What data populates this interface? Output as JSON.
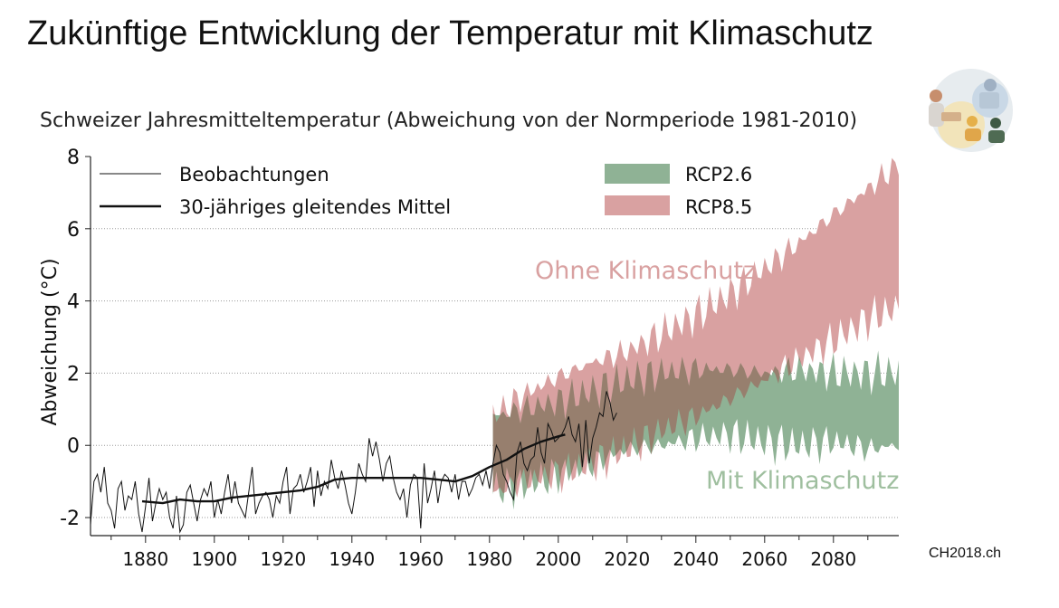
{
  "slide": {
    "title": "Zukünftige Entwicklung der Temperatur mit Klimaschutz",
    "source": "CH2018.ch"
  },
  "colors": {
    "rcp26": "#8fb295",
    "rcp85": "#d9a1a1",
    "overlap": "#9a6e61",
    "label_ohne": "#d9a1a1",
    "label_mit": "#9fbf9f",
    "observations": "#111111"
  },
  "logo": {
    "icon": "ch2018-people-collage-icon"
  },
  "chart_data": {
    "type": "line",
    "title": "Schweizer Jahresmitteltemperatur (Abweichung von der Normperiode 1981-2010)",
    "ylabel": "Abweichung (°C)",
    "xlabel": "",
    "xlim": [
      1864,
      2099
    ],
    "ylim": [
      -2.5,
      8
    ],
    "xticks": [
      1880,
      1900,
      1920,
      1940,
      1960,
      1980,
      2000,
      2020,
      2040,
      2060,
      2080
    ],
    "yticks": [
      -2,
      0,
      2,
      4,
      6,
      8
    ],
    "grid": "horizontal dotted",
    "legend_position": "top",
    "legend": [
      {
        "label": "Beobachtungen",
        "kind": "thin-line"
      },
      {
        "label": "30-jähriges gleitendes Mittel",
        "kind": "thick-line"
      },
      {
        "label": "RCP2.6",
        "kind": "band"
      },
      {
        "label": "RCP8.5",
        "kind": "band"
      }
    ],
    "annotations": [
      {
        "text": "Ohne Klimaschutz",
        "x": 2035,
        "y": 4.8,
        "scenario": "RCP8.5"
      },
      {
        "text": "Mit Klimaschutz",
        "x": 2070,
        "y": -1.0,
        "scenario": "RCP2.6"
      }
    ],
    "series": [
      {
        "name": "Beobachtungen",
        "x": [
          1864,
          1865,
          1866,
          1867,
          1868,
          1869,
          1870,
          1871,
          1872,
          1873,
          1874,
          1875,
          1876,
          1877,
          1878,
          1879,
          1880,
          1881,
          1882,
          1883,
          1884,
          1885,
          1886,
          1887,
          1888,
          1889,
          1890,
          1891,
          1892,
          1893,
          1894,
          1895,
          1896,
          1897,
          1898,
          1899,
          1900,
          1901,
          1902,
          1903,
          1904,
          1905,
          1906,
          1907,
          1908,
          1909,
          1910,
          1911,
          1912,
          1913,
          1914,
          1915,
          1916,
          1917,
          1918,
          1919,
          1920,
          1921,
          1922,
          1923,
          1924,
          1925,
          1926,
          1927,
          1928,
          1929,
          1930,
          1931,
          1932,
          1933,
          1934,
          1935,
          1936,
          1937,
          1938,
          1939,
          1940,
          1941,
          1942,
          1943,
          1944,
          1945,
          1946,
          1947,
          1948,
          1949,
          1950,
          1951,
          1952,
          1953,
          1954,
          1955,
          1956,
          1957,
          1958,
          1959,
          1960,
          1961,
          1962,
          1963,
          1964,
          1965,
          1966,
          1967,
          1968,
          1969,
          1970,
          1971,
          1972,
          1973,
          1974,
          1975,
          1976,
          1977,
          1978,
          1979,
          1980,
          1981,
          1982,
          1983,
          1984,
          1985,
          1986,
          1987,
          1988,
          1989,
          1990,
          1991,
          1992,
          1993,
          1994,
          1995,
          1996,
          1997,
          1998,
          1999,
          2000,
          2001,
          2002,
          2003,
          2004,
          2005,
          2006,
          2007,
          2008,
          2009,
          2010,
          2011,
          2012,
          2013,
          2014,
          2015,
          2016,
          2017
        ],
        "values": [
          -2.2,
          -1.0,
          -0.8,
          -1.3,
          -0.6,
          -1.6,
          -1.8,
          -2.3,
          -1.2,
          -1.0,
          -1.8,
          -1.4,
          -1.5,
          -1.0,
          -1.9,
          -2.4,
          -1.7,
          -0.9,
          -2.1,
          -1.6,
          -1.2,
          -1.5,
          -1.3,
          -2.0,
          -2.3,
          -1.4,
          -2.4,
          -2.2,
          -1.3,
          -1.1,
          -1.6,
          -2.1,
          -1.5,
          -1.2,
          -1.4,
          -1.0,
          -2.0,
          -1.5,
          -1.9,
          -1.3,
          -0.8,
          -1.6,
          -1.0,
          -1.6,
          -1.8,
          -2.0,
          -1.3,
          -0.6,
          -1.9,
          -1.6,
          -1.4,
          -1.3,
          -1.5,
          -2.0,
          -1.4,
          -1.6,
          -1.0,
          -0.6,
          -1.9,
          -1.2,
          -1.1,
          -0.8,
          -1.3,
          -1.0,
          -0.6,
          -1.7,
          -0.7,
          -1.4,
          -1.0,
          -1.2,
          -0.4,
          -0.9,
          -1.2,
          -0.7,
          -1.1,
          -1.6,
          -1.9,
          -1.3,
          -0.5,
          -0.8,
          -1.0,
          0.2,
          -0.3,
          0.1,
          -0.4,
          -1.0,
          -0.5,
          -0.3,
          -0.9,
          -1.3,
          -1.5,
          -1.2,
          -2.0,
          -1.1,
          -0.8,
          -0.9,
          -2.3,
          -0.5,
          -1.6,
          -1.2,
          -0.7,
          -1.6,
          -1.0,
          -0.8,
          -0.9,
          -1.3,
          -0.8,
          -1.5,
          -1.0,
          -1.0,
          -1.4,
          -1.2,
          -0.9,
          -0.8,
          -1.1,
          -0.7,
          -1.2,
          -0.5,
          0.0,
          -0.2,
          -0.8,
          -1.0,
          -1.3,
          -1.5,
          -0.2,
          0.1,
          -0.5,
          -0.7,
          -0.4,
          -0.3,
          0.5,
          -0.2,
          -0.5,
          0.6,
          0.4,
          0.1,
          0.2,
          0.3,
          0.5,
          0.8,
          0.3,
          0.1,
          0.6,
          -0.6,
          0.7,
          -0.5,
          0.2,
          0.5,
          0.9,
          0.8,
          1.5,
          1.2,
          0.7,
          0.9
        ]
      },
      {
        "name": "30-jähriges gleitendes Mittel",
        "x": [
          1879,
          1885,
          1890,
          1895,
          1900,
          1905,
          1910,
          1915,
          1920,
          1925,
          1930,
          1935,
          1940,
          1945,
          1950,
          1955,
          1960,
          1965,
          1970,
          1975,
          1980,
          1985,
          1990,
          1995,
          2000,
          2002
        ],
        "values": [
          -1.55,
          -1.6,
          -1.5,
          -1.55,
          -1.55,
          -1.45,
          -1.4,
          -1.35,
          -1.3,
          -1.25,
          -1.15,
          -0.95,
          -0.9,
          -0.9,
          -0.9,
          -0.9,
          -0.9,
          -0.95,
          -1.0,
          -0.85,
          -0.6,
          -0.4,
          -0.1,
          0.1,
          0.25,
          0.3
        ]
      },
      {
        "name": "RCP2.6",
        "x": [
          1981,
          1990,
          2000,
          2010,
          2020,
          2030,
          2040,
          2050,
          2060,
          2070,
          2080,
          2090,
          2099
        ],
        "lower": [
          -1.2,
          -1.1,
          -0.8,
          -0.5,
          -0.1,
          0.0,
          0.2,
          0.3,
          0.1,
          0.0,
          0.1,
          -0.1,
          0.0
        ],
        "upper": [
          0.8,
          1.0,
          1.2,
          1.5,
          1.8,
          2.0,
          2.1,
          2.1,
          2.0,
          2.1,
          2.0,
          2.0,
          2.0
        ]
      },
      {
        "name": "RCP8.5",
        "x": [
          1981,
          1990,
          2000,
          2010,
          2020,
          2030,
          2040,
          2050,
          2060,
          2070,
          2080,
          2090,
          2099
        ],
        "lower": [
          -1.3,
          -1.0,
          -0.8,
          -0.5,
          -0.1,
          0.4,
          0.8,
          1.3,
          1.8,
          2.4,
          2.9,
          3.5,
          3.8
        ],
        "upper": [
          0.8,
          1.4,
          1.9,
          2.3,
          2.6,
          3.1,
          3.6,
          4.2,
          4.9,
          5.6,
          6.4,
          7.1,
          7.8
        ]
      }
    ]
  }
}
